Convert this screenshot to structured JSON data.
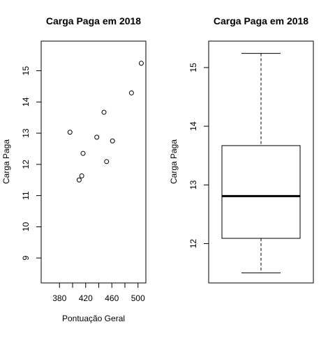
{
  "chart_data": [
    {
      "type": "scatter",
      "title": "Carga Paga em 2018",
      "xlabel": "Pontuação Geral",
      "ylabel": "Carga Paga",
      "xlim": [
        352,
        512
      ],
      "ylim": [
        8.2,
        15.95
      ],
      "x_ticks": [
        380,
        420,
        460,
        500
      ],
      "x_minor_ticks": [
        400,
        440,
        480
      ],
      "y_ticks": [
        9,
        10,
        11,
        12,
        13,
        14,
        15
      ],
      "grid": false,
      "points": [
        {
          "x": 396,
          "y": 13.03
        },
        {
          "x": 410,
          "y": 11.5
        },
        {
          "x": 414,
          "y": 11.63
        },
        {
          "x": 416,
          "y": 12.35
        },
        {
          "x": 437,
          "y": 12.87
        },
        {
          "x": 448,
          "y": 13.67
        },
        {
          "x": 452,
          "y": 12.09
        },
        {
          "x": 461,
          "y": 12.75
        },
        {
          "x": 490,
          "y": 14.29
        },
        {
          "x": 505,
          "y": 15.24
        }
      ]
    },
    {
      "type": "box",
      "title": "Carga Paga em 2018",
      "ylabel": "Carga Paga",
      "ylim": [
        11.33,
        15.45
      ],
      "y_ticks": [
        12,
        13,
        14,
        15
      ],
      "grid": false,
      "box": {
        "min": 11.5,
        "q1": 12.09,
        "median": 12.81,
        "q3": 13.67,
        "max": 15.24
      }
    }
  ]
}
